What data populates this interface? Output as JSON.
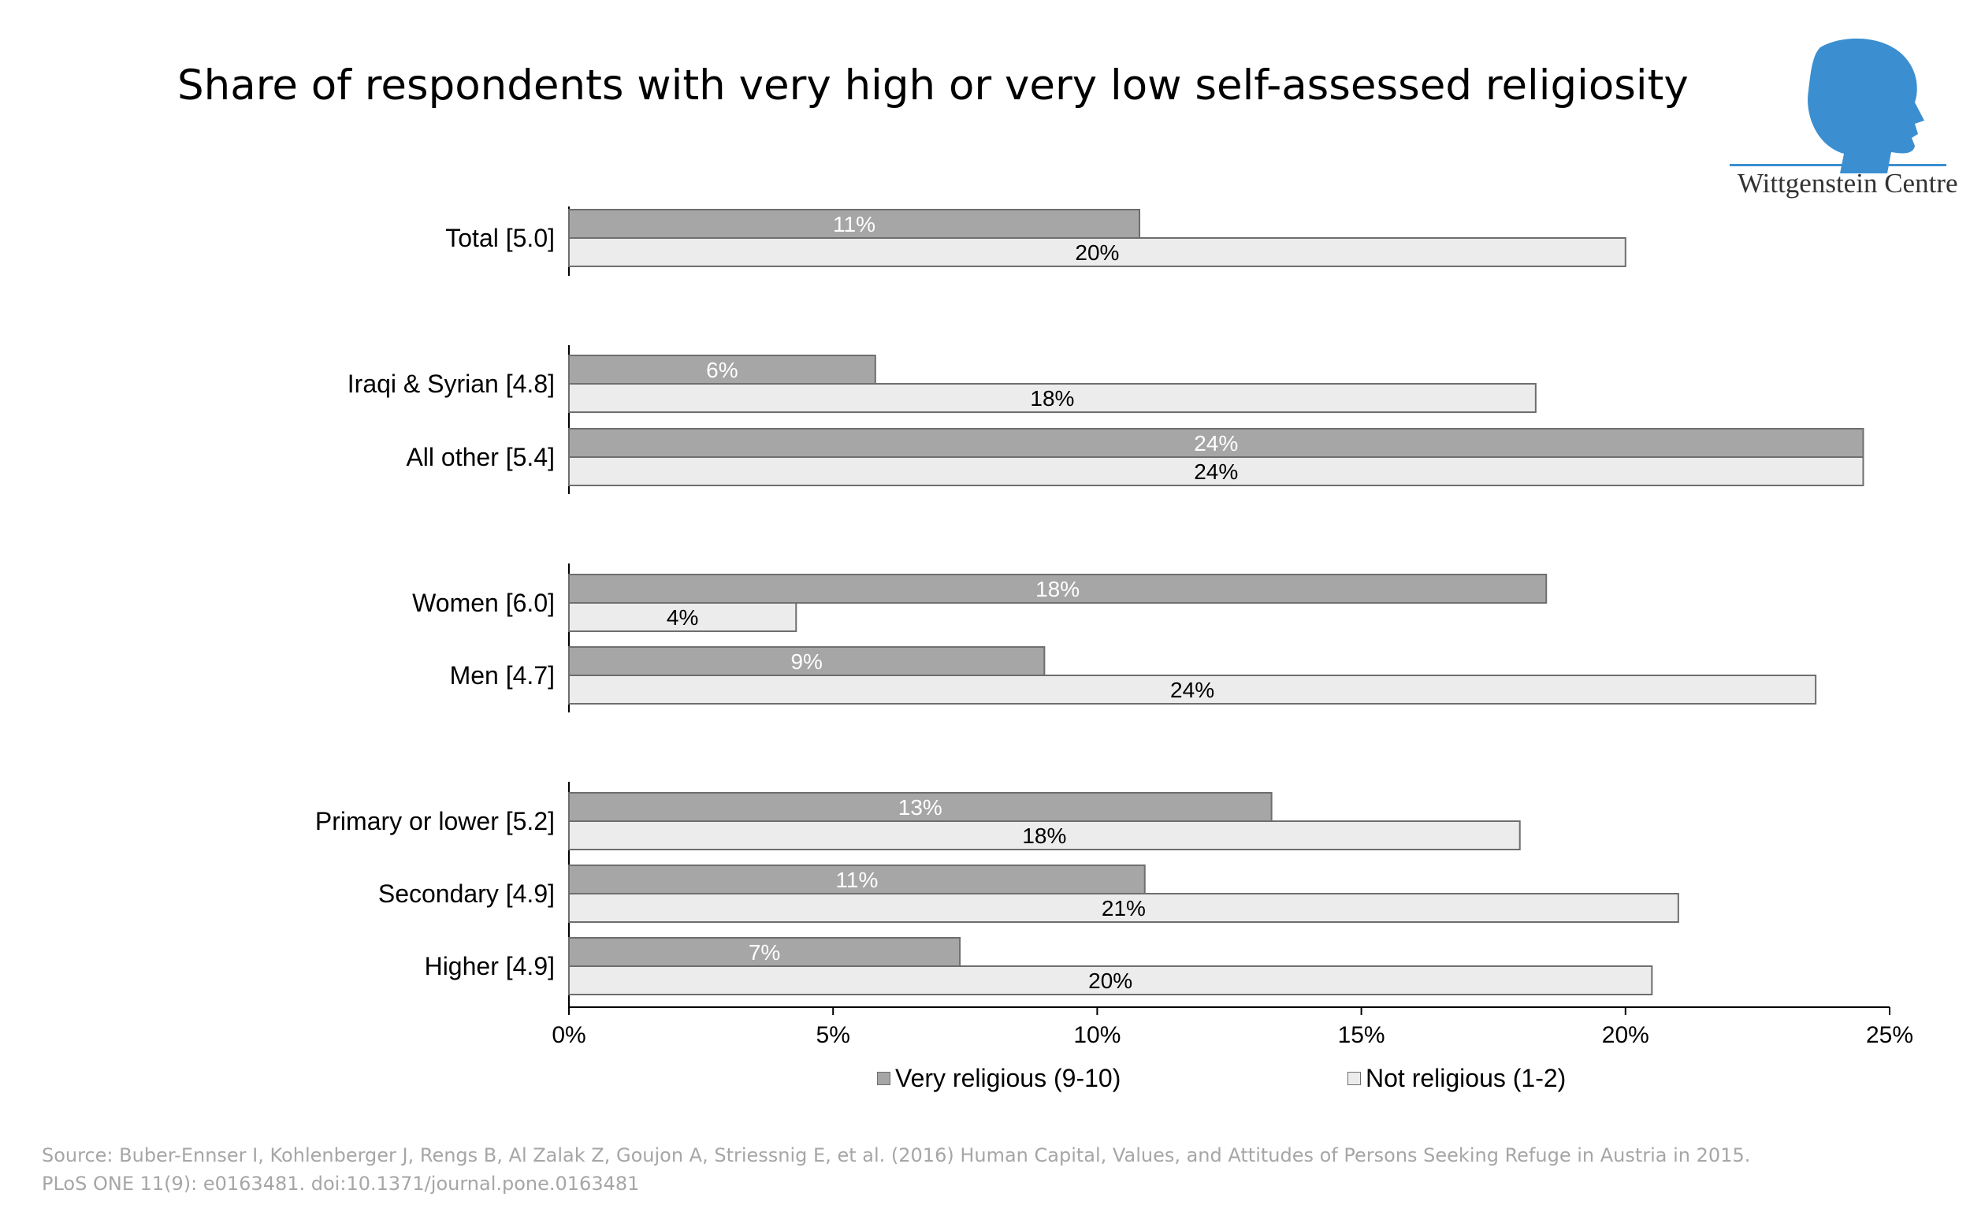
{
  "header": {
    "title": "Share of respondents with very high or very low self-assessed religiosity"
  },
  "logo": {
    "text": "Wittgenstein Centre",
    "color": "#3b8fd0"
  },
  "chart_data": {
    "type": "bar",
    "orientation": "horizontal",
    "title": "Share of respondents with very high or very low self-assessed religiosity",
    "categories": [
      "Total  [5.0]",
      "Iraqi & Syrian  [4.8]",
      "All other [5.4]",
      "Women [6.0]",
      "Men [4.7]",
      "Primary or lower [5.2]",
      "Secondary [4.9]",
      "Higher [4.9]"
    ],
    "groups": [
      [
        0
      ],
      [
        1,
        2
      ],
      [
        3,
        4
      ],
      [
        5,
        6,
        7
      ]
    ],
    "series": [
      {
        "name": "Very religious (9-10)",
        "color": "#a6a6a6",
        "values": [
          10.8,
          5.8,
          24.5,
          18.5,
          9.0,
          13.3,
          10.9,
          7.4
        ],
        "labels": [
          "11%",
          "6%",
          "24%",
          "18%",
          "9%",
          "13%",
          "11%",
          "7%"
        ],
        "label_color": "#ffffff"
      },
      {
        "name": "Not religious (1-2)",
        "color": "#ececec",
        "values": [
          20.0,
          18.3,
          24.5,
          4.3,
          23.6,
          18.0,
          21.0,
          20.5
        ],
        "labels": [
          "20%",
          "18%",
          "24%",
          "4%",
          "24%",
          "18%",
          "21%",
          "20%"
        ],
        "label_color": "#000000"
      }
    ],
    "xlim": [
      0,
      25
    ],
    "xticks": [
      "0%",
      "5%",
      "10%",
      "15%",
      "20%",
      "25%"
    ],
    "grid": false,
    "legend_position": "bottom"
  },
  "footer": {
    "source_line1": "Source: Buber-Ennser I, Kohlenberger J, Rengs B, Al Zalak Z, Goujon A, Striessnig E, et al. (2016) Human Capital, Values, and Attitudes of Persons Seeking Refuge in Austria in 2015.",
    "source_line2": "PLoS ONE 11(9): e0163481. doi:10.1371/journal.pone.0163481"
  }
}
